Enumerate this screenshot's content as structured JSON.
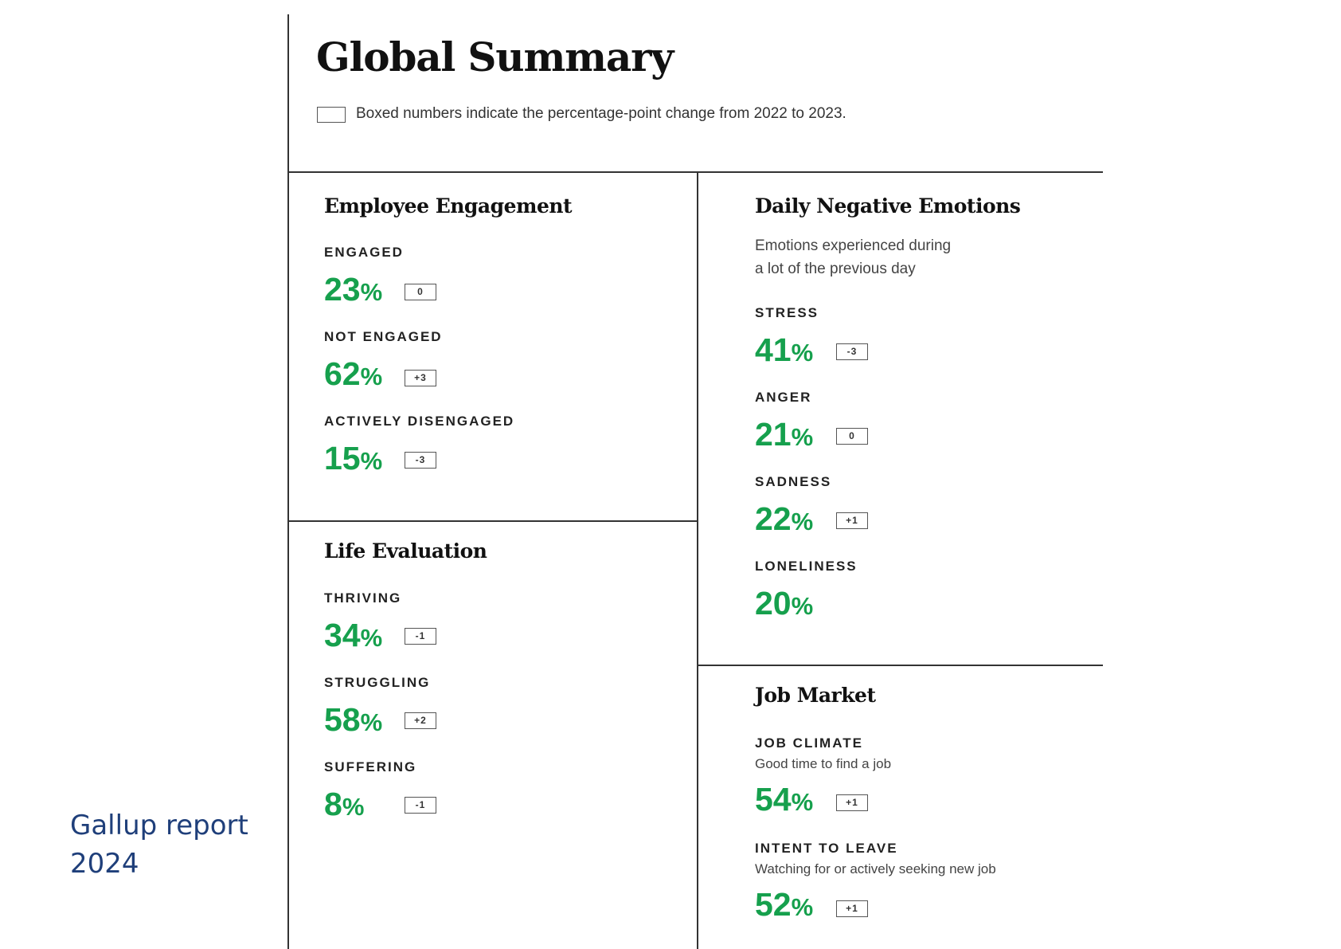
{
  "page": {
    "title": "Global Summary",
    "legend_text": "Boxed numbers indicate the percentage-point change from 2022 to 2023.",
    "caption_line1": "Gallup report",
    "caption_line2": "2024"
  },
  "colors": {
    "value_green": "#16a04d",
    "caption_blue": "#1f3f7a",
    "rule": "#333333"
  },
  "sections": {
    "engagement": {
      "title": "Employee Engagement",
      "metrics": [
        {
          "label": "ENGAGED",
          "value": "23",
          "unit": "%",
          "change": "0"
        },
        {
          "label": "NOT ENGAGED",
          "value": "62",
          "unit": "%",
          "change": "+3"
        },
        {
          "label": "ACTIVELY DISENGAGED",
          "value": "15",
          "unit": "%",
          "change": "-3"
        }
      ]
    },
    "life": {
      "title": "Life Evaluation",
      "metrics": [
        {
          "label": "THRIVING",
          "value": "34",
          "unit": "%",
          "change": "-1"
        },
        {
          "label": "STRUGGLING",
          "value": "58",
          "unit": "%",
          "change": "+2"
        },
        {
          "label": "SUFFERING",
          "value": "8",
          "unit": "%",
          "change": "-1"
        }
      ]
    },
    "emotions": {
      "title": "Daily Negative Emotions",
      "subtitle_line1": "Emotions experienced during",
      "subtitle_line2": "a lot of the previous day",
      "metrics": [
        {
          "label": "STRESS",
          "value": "41",
          "unit": "%",
          "change": "-3"
        },
        {
          "label": "ANGER",
          "value": "21",
          "unit": "%",
          "change": "0"
        },
        {
          "label": "SADNESS",
          "value": "22",
          "unit": "%",
          "change": "+1"
        },
        {
          "label": "LONELINESS",
          "value": "20",
          "unit": "%"
        }
      ]
    },
    "jobs": {
      "title": "Job Market",
      "metrics": [
        {
          "label": "JOB CLIMATE",
          "sub": "Good time to find a job",
          "value": "54",
          "unit": "%",
          "change": "+1"
        },
        {
          "label": "INTENT TO LEAVE",
          "sub": "Watching for or actively seeking new job",
          "value": "52",
          "unit": "%",
          "change": "+1"
        }
      ]
    }
  }
}
